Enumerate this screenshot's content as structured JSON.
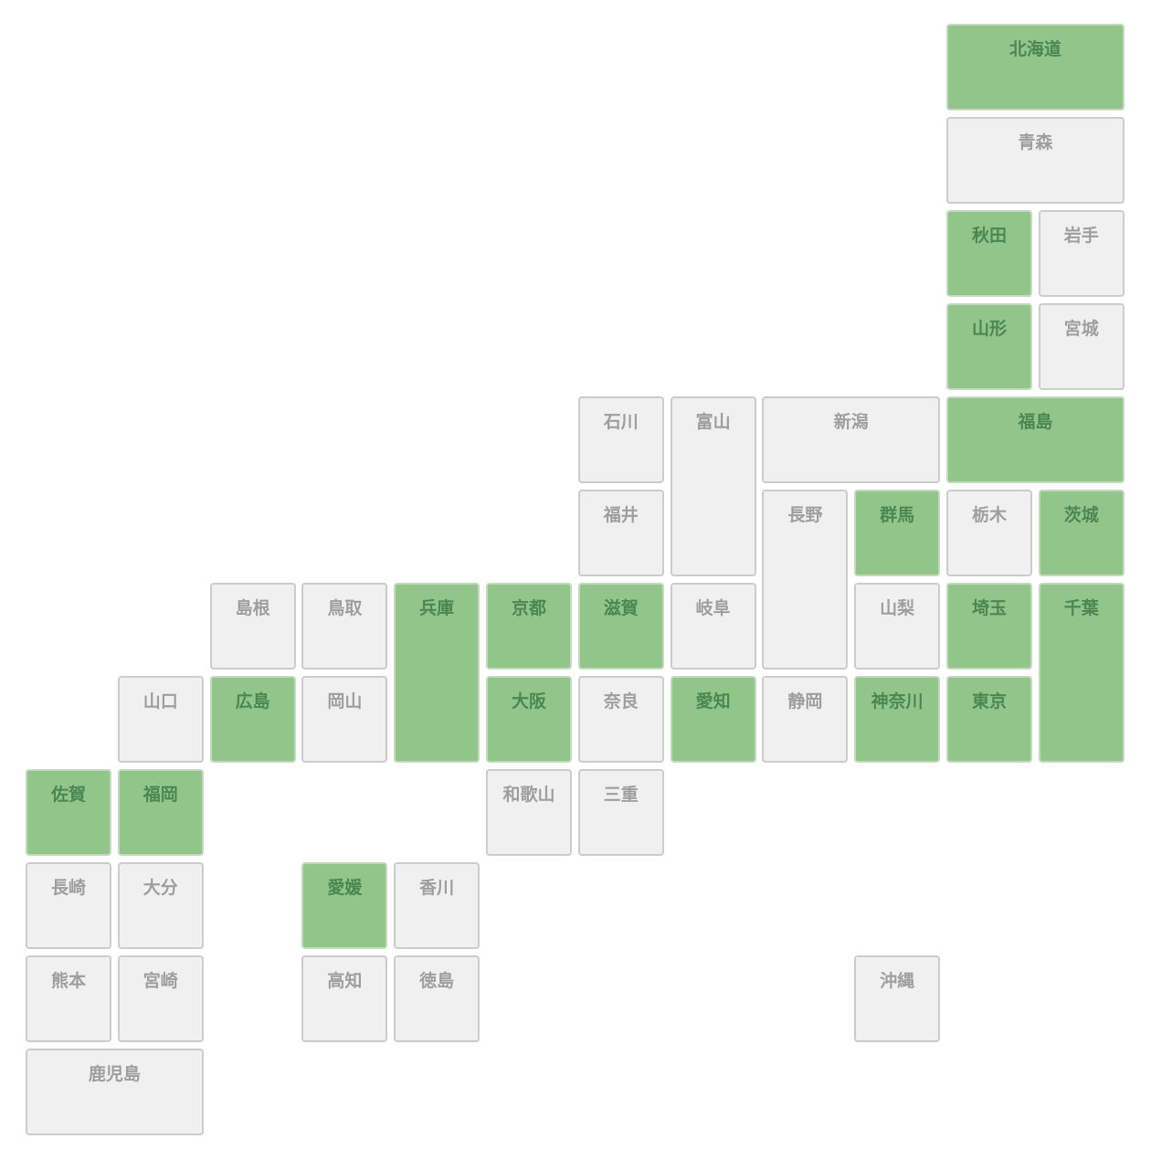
{
  "colors": {
    "selected_fill": "#92c589",
    "selected_text": "#4b8753",
    "unselected_fill": "#f0f0f0",
    "unselected_text": "#9e9e9e",
    "border": "#cccccc"
  },
  "prefectures": [
    {
      "name": "北海道",
      "selected": true
    },
    {
      "name": "青森",
      "selected": false
    },
    {
      "name": "秋田",
      "selected": true
    },
    {
      "name": "岩手",
      "selected": false
    },
    {
      "name": "山形",
      "selected": true
    },
    {
      "name": "宮城",
      "selected": false
    },
    {
      "name": "石川",
      "selected": false
    },
    {
      "name": "富山",
      "selected": false
    },
    {
      "name": "新潟",
      "selected": false
    },
    {
      "name": "福島",
      "selected": true
    },
    {
      "name": "福井",
      "selected": false
    },
    {
      "name": "長野",
      "selected": false
    },
    {
      "name": "群馬",
      "selected": true
    },
    {
      "name": "栃木",
      "selected": false
    },
    {
      "name": "茨城",
      "selected": true
    },
    {
      "name": "島根",
      "selected": false
    },
    {
      "name": "鳥取",
      "selected": false
    },
    {
      "name": "兵庫",
      "selected": true
    },
    {
      "name": "京都",
      "selected": true
    },
    {
      "name": "滋賀",
      "selected": true
    },
    {
      "name": "岐阜",
      "selected": false
    },
    {
      "name": "山梨",
      "selected": false
    },
    {
      "name": "埼玉",
      "selected": true
    },
    {
      "name": "千葉",
      "selected": true
    },
    {
      "name": "山口",
      "selected": false
    },
    {
      "name": "広島",
      "selected": true
    },
    {
      "name": "岡山",
      "selected": false
    },
    {
      "name": "大阪",
      "selected": true
    },
    {
      "name": "奈良",
      "selected": false
    },
    {
      "name": "愛知",
      "selected": true
    },
    {
      "name": "静岡",
      "selected": false
    },
    {
      "name": "神奈川",
      "selected": true
    },
    {
      "name": "東京",
      "selected": true
    },
    {
      "name": "佐賀",
      "selected": true
    },
    {
      "name": "福岡",
      "selected": true
    },
    {
      "name": "和歌山",
      "selected": false
    },
    {
      "name": "三重",
      "selected": false
    },
    {
      "name": "長崎",
      "selected": false
    },
    {
      "name": "大分",
      "selected": false
    },
    {
      "name": "愛媛",
      "selected": true
    },
    {
      "name": "香川",
      "selected": false
    },
    {
      "name": "熊本",
      "selected": false
    },
    {
      "name": "宮崎",
      "selected": false
    },
    {
      "name": "高知",
      "selected": false
    },
    {
      "name": "徳島",
      "selected": false
    },
    {
      "name": "沖縄",
      "selected": false
    },
    {
      "name": "鹿児島",
      "selected": false
    }
  ]
}
